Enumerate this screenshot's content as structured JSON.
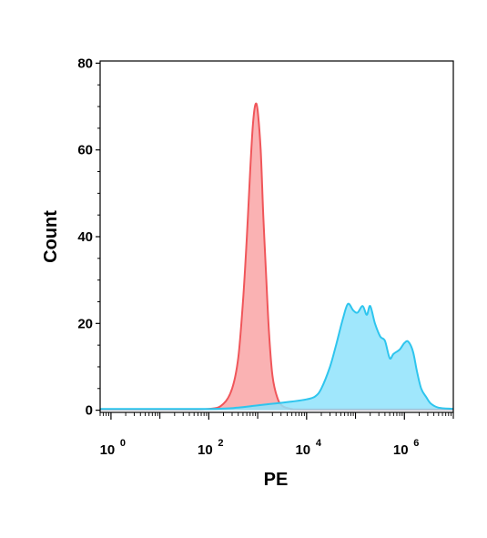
{
  "chart_data": {
    "type": "area",
    "title": "",
    "xlabel": "PE",
    "ylabel": "Count",
    "x_scale": "log",
    "xlim": [
      0.6,
      10000000
    ],
    "ylim": [
      -0.5,
      80.5
    ],
    "grid": false,
    "x_ticks": [
      {
        "base": "10",
        "exp": "0",
        "value": 1
      },
      {
        "base": "10",
        "exp": "2",
        "value": 100
      },
      {
        "base": "10",
        "exp": "4",
        "value": 10000
      },
      {
        "base": "10",
        "exp": "6",
        "value": 1000000
      }
    ],
    "y_ticks": [
      {
        "label": "0",
        "value": 0
      },
      {
        "label": "20",
        "value": 20
      },
      {
        "label": "40",
        "value": 40
      },
      {
        "label": "60",
        "value": 60
      },
      {
        "label": "80",
        "value": 80
      }
    ],
    "series": [
      {
        "color": "#f0565a",
        "fill": "#f9a5a6",
        "points": [
          [
            0.6,
            0.2
          ],
          [
            10,
            0.2
          ],
          [
            100,
            0.3
          ],
          [
            200,
            1.5
          ],
          [
            300,
            5
          ],
          [
            400,
            12
          ],
          [
            500,
            25
          ],
          [
            600,
            40
          ],
          [
            700,
            55
          ],
          [
            800,
            66
          ],
          [
            900,
            70.5
          ],
          [
            1000,
            69
          ],
          [
            1150,
            60
          ],
          [
            1300,
            45
          ],
          [
            1500,
            30
          ],
          [
            1700,
            18
          ],
          [
            2000,
            8
          ],
          [
            2500,
            3
          ],
          [
            3200,
            1
          ],
          [
            5000,
            0.3
          ],
          [
            10000,
            0.2
          ],
          [
            10000000,
            0.2
          ]
        ]
      },
      {
        "color": "#2ec5ee",
        "fill": "#8fe3fb",
        "points": [
          [
            0.6,
            0.3
          ],
          [
            100,
            0.3
          ],
          [
            400,
            0.6
          ],
          [
            800,
            1.0
          ],
          [
            2000,
            1.5
          ],
          [
            5000,
            2.0
          ],
          [
            10000,
            2.5
          ],
          [
            15000,
            3.2
          ],
          [
            20000,
            5
          ],
          [
            30000,
            10
          ],
          [
            40000,
            15
          ],
          [
            55000,
            21
          ],
          [
            70000,
            24.5
          ],
          [
            90000,
            23
          ],
          [
            110000,
            22.5
          ],
          [
            140000,
            24
          ],
          [
            170000,
            22
          ],
          [
            200000,
            24
          ],
          [
            250000,
            20
          ],
          [
            320000,
            17
          ],
          [
            400000,
            16
          ],
          [
            500000,
            12
          ],
          [
            600000,
            13
          ],
          [
            800000,
            14
          ],
          [
            1000000,
            15.5
          ],
          [
            1200000,
            15.8
          ],
          [
            1500000,
            13.5
          ],
          [
            1800000,
            9
          ],
          [
            2200000,
            5
          ],
          [
            2800000,
            3
          ],
          [
            3500000,
            1.5
          ],
          [
            5000000,
            0.6
          ],
          [
            10000000,
            0.3
          ]
        ]
      }
    ]
  }
}
